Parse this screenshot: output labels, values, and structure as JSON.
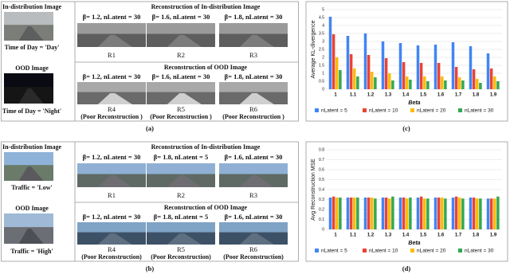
{
  "panels": [
    {
      "left": {
        "id_title": "In-distribution Image",
        "id_caption": "Time of Day = 'Day'",
        "ood_title": "OOD Image",
        "ood_caption": "Time of Day = 'Night'"
      },
      "id_heading": "Reconstruction of In-distribution Image",
      "id_betas": [
        "β= 1.2, nLatent = 30",
        "β= 1.6, nLatent = 30",
        "β= 1.8, nLatent = 30"
      ],
      "id_labels": [
        "R1",
        "R2",
        "R3"
      ],
      "ood_heading": "Reconstruction of OOD Image",
      "ood_betas": [
        "β= 1.2, nLatent = 30",
        "β= 1.6, nLatent = 30",
        "β= 1.8, nLatent = 30"
      ],
      "ood_labels": [
        "R4",
        "R5",
        "R6"
      ],
      "ood_notes": [
        "(Poor Reconstruction )",
        "(Poor Reconstruction )",
        "(Poor Reconstruction )"
      ],
      "caption": "(a)"
    },
    {
      "left": {
        "id_title": "In-distribution Image",
        "id_caption": "Traffic = 'Low'",
        "ood_title": "OOD Image",
        "ood_caption": "Traffic = 'High'"
      },
      "id_heading": "Reconstruction of In-distribution Image",
      "id_betas": [
        "β= 1.2, nLatent = 30",
        "β= 1.8, nLatent = 5",
        "β= 1.6, nLatent = 30"
      ],
      "id_labels": [
        "R1",
        "R2",
        "R3"
      ],
      "ood_heading": "Reconstruction of OOD Image",
      "ood_betas": [
        "β= 1.2, nLatent = 30",
        "β= 1.8, nLatent = 5",
        "β= 1.6, nLatent = 30"
      ],
      "ood_labels": [
        "R4",
        "R5",
        "R6"
      ],
      "ood_notes": [
        "(Poor Reconstruction)",
        "(Poor Reconstruction)",
        "(Poor Reconstruction)"
      ],
      "caption": "(b)"
    }
  ],
  "chart_data": [
    {
      "type": "bar",
      "caption": "(c)",
      "y_label": "Average KL-divergence",
      "x_label": "Beta",
      "categories": [
        "1",
        "1.1",
        "1.2",
        "1.3",
        "1.4",
        "1.5",
        "1.6",
        "1.7",
        "1.8",
        "1.9"
      ],
      "series": [
        {
          "name": "nLatent = 5",
          "color": "#4285f4",
          "values": [
            4.55,
            3.35,
            3.5,
            3.0,
            2.9,
            2.75,
            2.8,
            2.95,
            2.7,
            2.25
          ]
        },
        {
          "name": "nLatent = 10",
          "color": "#ea4335",
          "values": [
            3.45,
            2.2,
            2.15,
            1.95,
            1.7,
            1.65,
            1.65,
            1.4,
            1.25,
            1.3
          ]
        },
        {
          "name": "nLatent = 20",
          "color": "#fbbc04",
          "values": [
            2.0,
            1.3,
            1.1,
            1.0,
            0.8,
            0.8,
            0.8,
            0.75,
            0.65,
            0.8
          ]
        },
        {
          "name": "nLatent = 30",
          "color": "#34a853",
          "values": [
            1.2,
            0.8,
            0.75,
            0.55,
            0.6,
            0.5,
            0.55,
            0.55,
            0.4,
            0.5
          ]
        }
      ],
      "ylim": [
        0,
        5
      ],
      "yticks": [
        0,
        0.5,
        1,
        1.5,
        2,
        2.5,
        3,
        3.5,
        4,
        4.5,
        5
      ],
      "grid": true,
      "legend": "bottom"
    },
    {
      "type": "bar",
      "caption": "(d)",
      "y_label": "Avg Reconstruction MSE",
      "x_label": "Beta",
      "categories": [
        "1",
        "1.1",
        "1.2",
        "1.3",
        "1.4",
        "1.5",
        "1.6",
        "1.7",
        "1.8",
        "1.9"
      ],
      "series": [
        {
          "name": "nLatent = 5",
          "color": "#4285f4",
          "values": [
            0.32,
            0.32,
            0.32,
            0.32,
            0.32,
            0.32,
            0.32,
            0.32,
            0.32,
            0.31
          ]
        },
        {
          "name": "nLatent = 10",
          "color": "#ea4335",
          "values": [
            0.33,
            0.32,
            0.32,
            0.32,
            0.32,
            0.33,
            0.32,
            0.33,
            0.32,
            0.31
          ]
        },
        {
          "name": "nLatent = 20",
          "color": "#fbbc04",
          "values": [
            0.32,
            0.32,
            0.32,
            0.31,
            0.31,
            0.31,
            0.32,
            0.32,
            0.31,
            0.31
          ]
        },
        {
          "name": "nLatent = 30",
          "color": "#34a853",
          "values": [
            0.32,
            0.32,
            0.31,
            0.33,
            0.32,
            0.31,
            0.31,
            0.31,
            0.31,
            0.33
          ]
        }
      ],
      "ylim": [
        0,
        0.8
      ],
      "yticks": [
        0,
        0.1,
        0.2,
        0.3,
        0.4,
        0.5,
        0.6,
        0.7,
        0.8
      ],
      "grid": true,
      "legend": "bottom"
    }
  ]
}
